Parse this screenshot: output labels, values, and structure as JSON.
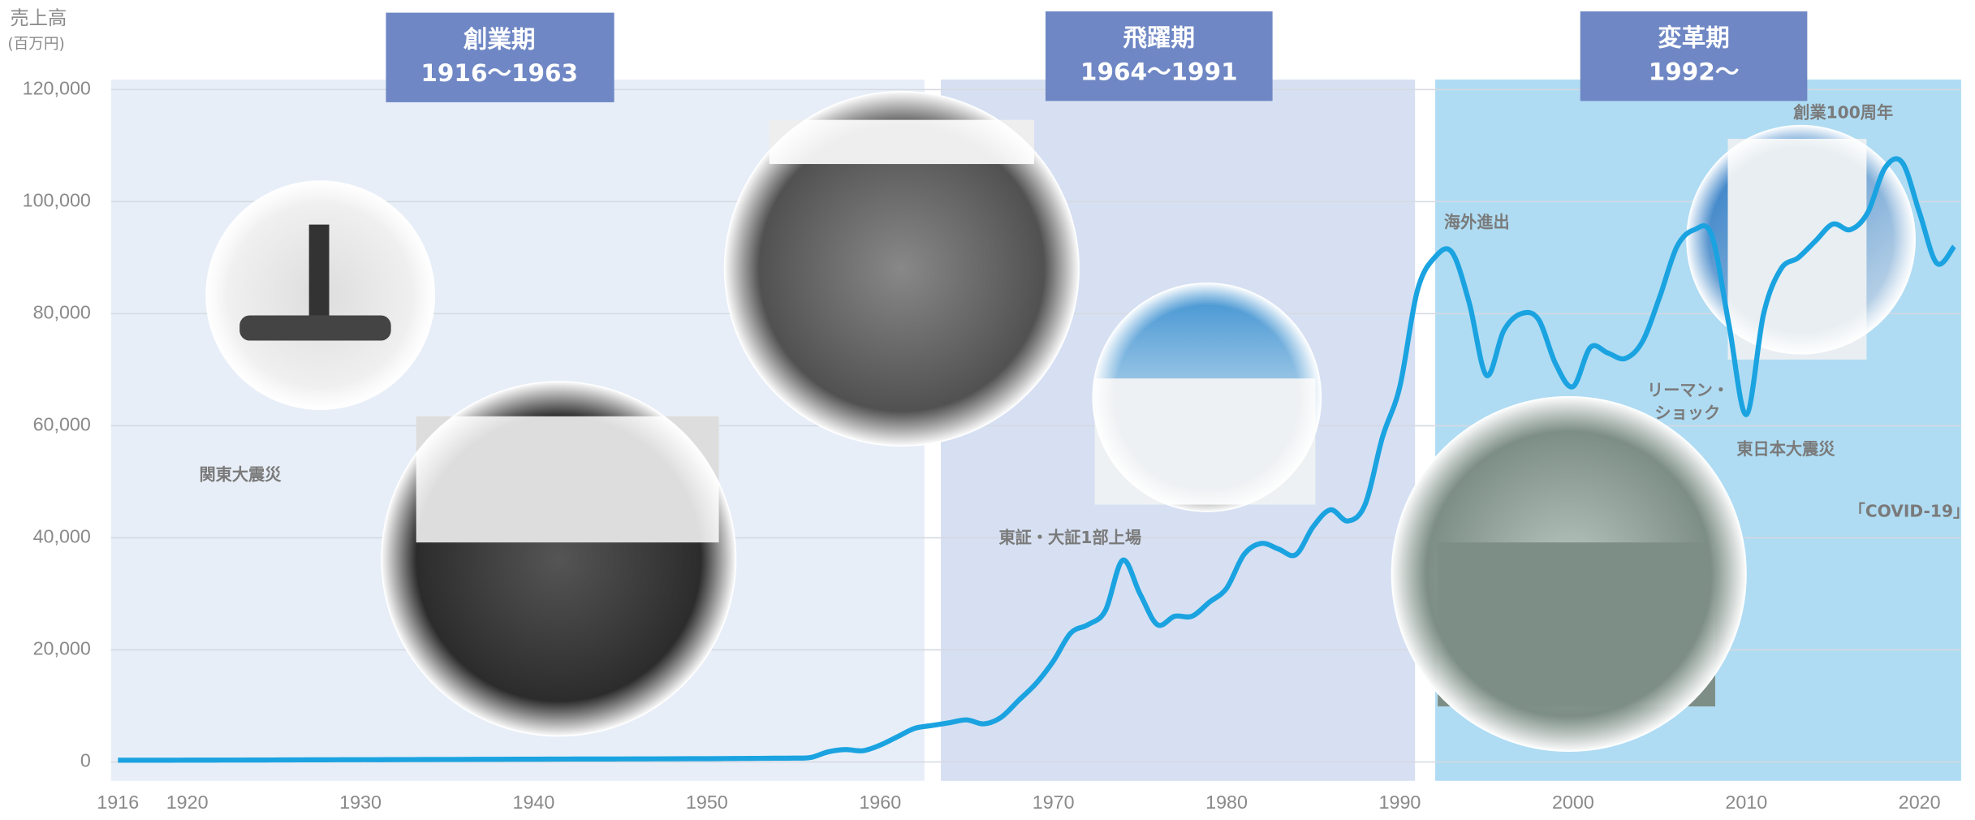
{
  "chart_data": {
    "type": "line",
    "y_label": "売上高",
    "y_unit": "(百万円)",
    "eras": [
      {
        "name": "創業期",
        "period": "1916〜1963"
      },
      {
        "name": "飛躍期",
        "period": "1964〜1991"
      },
      {
        "name": "変革期",
        "period": "1992〜"
      }
    ],
    "annotations": [
      "関東大震災",
      "東証・大証1部上場",
      "海外進出",
      "リーマン・ショック",
      "東日本大震災",
      "「COVID-19」",
      "創業100周年"
    ],
    "x": [
      1916,
      1917,
      1918,
      1919,
      1920,
      1921,
      1922,
      1923,
      1924,
      1925,
      1926,
      1927,
      1928,
      1929,
      1930,
      1931,
      1932,
      1933,
      1934,
      1935,
      1936,
      1937,
      1938,
      1939,
      1940,
      1941,
      1942,
      1943,
      1944,
      1945,
      1946,
      1947,
      1948,
      1949,
      1950,
      1951,
      1952,
      1953,
      1954,
      1955,
      1956,
      1957,
      1958,
      1959,
      1960,
      1961,
      1962,
      1963,
      1964,
      1965,
      1966,
      1967,
      1968,
      1969,
      1970,
      1971,
      1972,
      1973,
      1974,
      1975,
      1976,
      1977,
      1978,
      1979,
      1980,
      1981,
      1982,
      1983,
      1984,
      1985,
      1986,
      1987,
      1988,
      1989,
      1990,
      1991,
      1992,
      1993,
      1994,
      1995,
      1996,
      1997,
      1998,
      1999,
      2000,
      2001,
      2002,
      2003,
      2004,
      2005,
      2006,
      2007,
      2008,
      2009,
      2010,
      2011,
      2012,
      2013,
      2014,
      2015,
      2016,
      2017,
      2018,
      2019,
      2020,
      2021,
      2022
    ],
    "series": [
      {
        "name": "売上高",
        "color": "#1aa3e0",
        "values": [
          300,
          300,
          300,
          300,
          320,
          320,
          330,
          330,
          340,
          350,
          360,
          370,
          380,
          390,
          400,
          400,
          410,
          420,
          430,
          440,
          450,
          460,
          470,
          480,
          490,
          500,
          510,
          520,
          520,
          530,
          540,
          550,
          560,
          570,
          580,
          600,
          620,
          640,
          660,
          680,
          800,
          1800,
          2200,
          2000,
          3000,
          4500,
          6000,
          6500,
          7000,
          7500,
          6800,
          8000,
          11000,
          14000,
          18000,
          23000,
          24500,
          27000,
          36000,
          30000,
          24500,
          26000,
          26000,
          28500,
          31000,
          37000,
          39000,
          38000,
          37000,
          42000,
          45000,
          43000,
          46000,
          58000,
          67000,
          84000,
          90000,
          91000,
          82000,
          69000,
          77000,
          80000,
          79000,
          71000,
          67000,
          74000,
          73000,
          72000,
          75000,
          83000,
          92000,
          95000,
          94000,
          78000,
          62000,
          80000,
          88000,
          90000,
          93000,
          96000,
          95000,
          98000,
          106000,
          107000,
          98000,
          89000,
          92000
        ]
      }
    ],
    "xlim": [
      1915.6,
      2022.4
    ],
    "ylim": [
      0,
      120000
    ],
    "xticks": [
      1916,
      1920,
      1930,
      1940,
      1950,
      1960,
      1970,
      1980,
      1990,
      2000,
      2010,
      2020
    ],
    "yticks": [
      0,
      {
        "value": 20000,
        "label": "20,000"
      },
      {
        "value": 40000,
        "label": "40,000"
      },
      {
        "value": 60000,
        "label": "60,000"
      },
      {
        "value": 80000,
        "label": "80,000"
      },
      {
        "value": 100000,
        "label": "100,000"
      },
      {
        "value": 120000,
        "label": "120,000"
      }
    ],
    "grid": true
  }
}
